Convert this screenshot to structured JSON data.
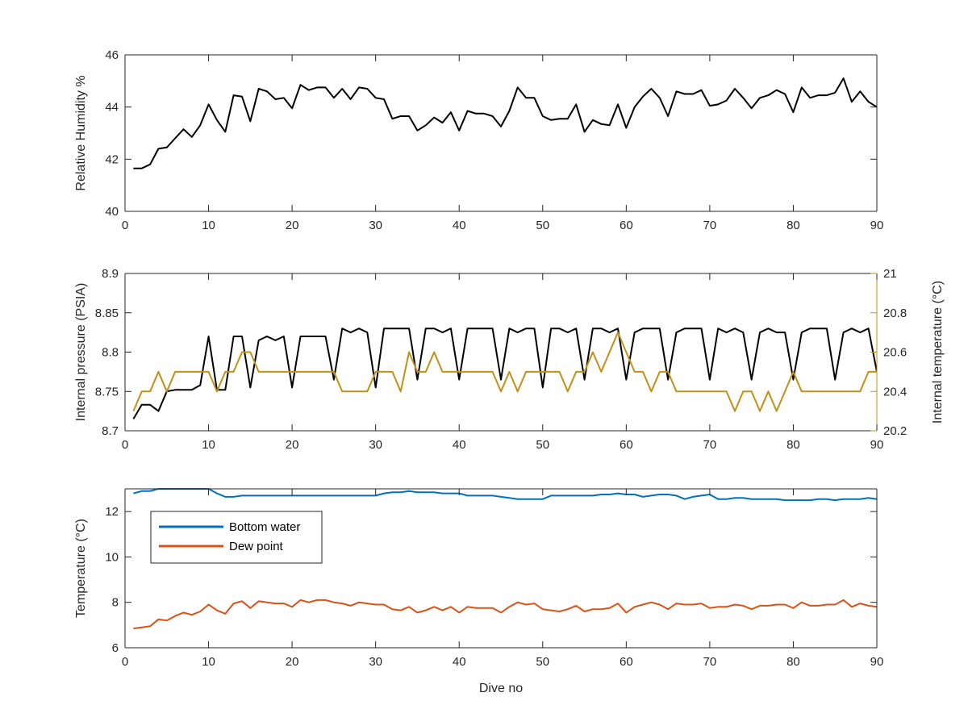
{
  "colors": {
    "rh": "#000000",
    "pressure": "#000000",
    "internal_temp": "#C09018",
    "bottom_water": "#0072BD",
    "dew_point": "#D95319",
    "axis": "#262626"
  },
  "chart_data": [
    {
      "id": "rh",
      "type": "line",
      "xlabel": "",
      "ylabel": "Relative Humidity %",
      "xlim": [
        0,
        90
      ],
      "ylim": [
        40,
        46
      ],
      "xticks": [
        0,
        10,
        20,
        30,
        40,
        50,
        60,
        70,
        80,
        90
      ],
      "yticks": [
        40,
        42,
        44,
        46
      ],
      "series": [
        {
          "color": "#000000",
          "x": [
            1,
            2,
            3,
            4,
            5,
            6,
            7,
            8,
            9,
            10,
            11,
            12,
            13,
            14,
            15,
            16,
            17,
            18,
            19,
            20,
            21,
            22,
            23,
            24,
            25,
            26,
            27,
            28,
            29,
            30,
            31,
            32,
            33,
            34,
            35,
            36,
            37,
            38,
            39,
            40,
            41,
            42,
            43,
            44,
            45,
            46,
            47,
            48,
            49,
            50,
            51,
            52,
            53,
            54,
            55,
            56,
            57,
            58,
            59,
            60,
            61,
            62,
            63,
            64,
            65,
            66,
            67,
            68,
            69,
            70,
            71,
            72,
            73,
            74,
            75,
            76,
            77,
            78,
            79,
            80,
            81,
            82,
            83,
            84,
            85,
            86,
            87,
            88,
            89,
            90
          ],
          "y": [
            41.65,
            41.65,
            41.8,
            42.4,
            42.45,
            42.8,
            43.15,
            42.85,
            43.3,
            44.1,
            43.5,
            43.05,
            44.45,
            44.4,
            43.45,
            44.7,
            44.6,
            44.3,
            44.35,
            43.95,
            44.85,
            44.65,
            44.75,
            44.75,
            44.35,
            44.7,
            44.3,
            44.75,
            44.7,
            44.35,
            44.3,
            43.55,
            43.65,
            43.65,
            43.1,
            43.3,
            43.6,
            43.4,
            43.8,
            43.1,
            43.85,
            43.75,
            43.75,
            43.65,
            43.25,
            43.85,
            44.75,
            44.35,
            44.35,
            43.65,
            43.5,
            43.55,
            43.55,
            44.1,
            43.05,
            43.5,
            43.35,
            43.3,
            44.1,
            43.2,
            44.0,
            44.4,
            44.7,
            44.35,
            43.65,
            44.6,
            44.5,
            44.5,
            44.65,
            44.05,
            44.1,
            44.25,
            44.7,
            44.35,
            43.95,
            44.35,
            44.45,
            44.65,
            44.5,
            43.8,
            44.75,
            44.35,
            44.45,
            44.45,
            44.55,
            45.1,
            44.2,
            44.6,
            44.2,
            44.0
          ]
        }
      ]
    },
    {
      "id": "pressure",
      "type": "line",
      "xlabel": "",
      "ylabel": "Internal pressure (PSIA)",
      "y2label": "Internal temperature (°C)",
      "xlim": [
        0,
        90
      ],
      "ylim": [
        8.7,
        8.9
      ],
      "y2lim": [
        20.2,
        21
      ],
      "xticks": [
        0,
        10,
        20,
        30,
        40,
        50,
        60,
        70,
        80,
        90
      ],
      "yticks": [
        8.7,
        8.75,
        8.8,
        8.85,
        8.9
      ],
      "y2ticks": [
        20.2,
        20.4,
        20.6,
        20.8,
        21
      ],
      "series": [
        {
          "axis": "left",
          "color": "#000000",
          "x": [
            1,
            2,
            3,
            4,
            5,
            6,
            7,
            8,
            9,
            10,
            11,
            12,
            13,
            14,
            15,
            16,
            17,
            18,
            19,
            20,
            21,
            22,
            23,
            24,
            25,
            26,
            27,
            28,
            29,
            30,
            31,
            32,
            33,
            34,
            35,
            36,
            37,
            38,
            39,
            40,
            41,
            42,
            43,
            44,
            45,
            46,
            47,
            48,
            49,
            50,
            51,
            52,
            53,
            54,
            55,
            56,
            57,
            58,
            59,
            60,
            61,
            62,
            63,
            64,
            65,
            66,
            67,
            68,
            69,
            70,
            71,
            72,
            73,
            74,
            75,
            76,
            77,
            78,
            79,
            80,
            81,
            82,
            83,
            84,
            85,
            86,
            87,
            88,
            89,
            90
          ],
          "y": [
            8.715,
            8.733,
            8.733,
            8.725,
            8.75,
            8.752,
            8.752,
            8.752,
            8.758,
            8.82,
            8.752,
            8.752,
            8.82,
            8.82,
            8.755,
            8.815,
            8.82,
            8.815,
            8.82,
            8.755,
            8.82,
            8.82,
            8.82,
            8.82,
            8.765,
            8.83,
            8.825,
            8.83,
            8.825,
            8.755,
            8.83,
            8.83,
            8.83,
            8.83,
            8.765,
            8.83,
            8.83,
            8.825,
            8.83,
            8.765,
            8.83,
            8.83,
            8.83,
            8.83,
            8.765,
            8.83,
            8.825,
            8.83,
            8.83,
            8.755,
            8.83,
            8.83,
            8.825,
            8.83,
            8.765,
            8.83,
            8.83,
            8.825,
            8.83,
            8.765,
            8.825,
            8.83,
            8.83,
            8.83,
            8.765,
            8.825,
            8.83,
            8.83,
            8.83,
            8.765,
            8.83,
            8.825,
            8.83,
            8.825,
            8.765,
            8.825,
            8.83,
            8.825,
            8.825,
            8.765,
            8.825,
            8.83,
            8.83,
            8.83,
            8.765,
            8.825,
            8.83,
            8.825,
            8.83,
            8.775
          ]
        },
        {
          "axis": "right",
          "color": "#C09018",
          "x": [
            1,
            2,
            3,
            4,
            5,
            6,
            7,
            8,
            9,
            10,
            11,
            12,
            13,
            14,
            15,
            16,
            17,
            18,
            19,
            20,
            21,
            22,
            23,
            24,
            25,
            26,
            27,
            28,
            29,
            30,
            31,
            32,
            33,
            34,
            35,
            36,
            37,
            38,
            39,
            40,
            41,
            42,
            43,
            44,
            45,
            46,
            47,
            48,
            49,
            50,
            51,
            52,
            53,
            54,
            55,
            56,
            57,
            58,
            59,
            60,
            61,
            62,
            63,
            64,
            65,
            66,
            67,
            68,
            69,
            70,
            71,
            72,
            73,
            74,
            75,
            76,
            77,
            78,
            79,
            80,
            81,
            82,
            83,
            84,
            85,
            86,
            87,
            88,
            89,
            90
          ],
          "y": [
            20.3,
            20.4,
            20.4,
            20.5,
            20.4,
            20.5,
            20.5,
            20.5,
            20.5,
            20.5,
            20.4,
            20.5,
            20.5,
            20.6,
            20.6,
            20.5,
            20.5,
            20.5,
            20.5,
            20.5,
            20.5,
            20.5,
            20.5,
            20.5,
            20.5,
            20.4,
            20.4,
            20.4,
            20.4,
            20.5,
            20.5,
            20.5,
            20.4,
            20.6,
            20.5,
            20.5,
            20.6,
            20.5,
            20.5,
            20.5,
            20.5,
            20.5,
            20.5,
            20.5,
            20.4,
            20.5,
            20.4,
            20.5,
            20.5,
            20.5,
            20.5,
            20.5,
            20.4,
            20.5,
            20.5,
            20.6,
            20.5,
            20.6,
            20.7,
            20.6,
            20.5,
            20.5,
            20.4,
            20.5,
            20.5,
            20.4,
            20.4,
            20.4,
            20.4,
            20.4,
            20.4,
            20.4,
            20.3,
            20.4,
            20.4,
            20.3,
            20.4,
            20.3,
            20.4,
            20.5,
            20.4,
            20.4,
            20.4,
            20.4,
            20.4,
            20.4,
            20.4,
            20.4,
            20.5,
            20.5
          ]
        }
      ]
    },
    {
      "id": "temperature",
      "type": "line",
      "xlabel": "Dive no",
      "ylabel": "Temperature (°C)",
      "xlim": [
        0,
        90
      ],
      "ylim": [
        6,
        13
      ],
      "xticks": [
        0,
        10,
        20,
        30,
        40,
        50,
        60,
        70,
        80,
        90
      ],
      "yticks": [
        6,
        8,
        10,
        12
      ],
      "legend": "top-left",
      "series": [
        {
          "name": "Bottom water",
          "color": "#0072BD",
          "x": [
            1,
            2,
            3,
            4,
            5,
            6,
            7,
            8,
            9,
            10,
            11,
            12,
            13,
            14,
            15,
            16,
            17,
            18,
            19,
            20,
            21,
            22,
            23,
            24,
            25,
            26,
            27,
            28,
            29,
            30,
            31,
            32,
            33,
            34,
            35,
            36,
            37,
            38,
            39,
            40,
            41,
            42,
            43,
            44,
            45,
            46,
            47,
            48,
            49,
            50,
            51,
            52,
            53,
            54,
            55,
            56,
            57,
            58,
            59,
            60,
            61,
            62,
            63,
            64,
            65,
            66,
            67,
            68,
            69,
            70,
            71,
            72,
            73,
            74,
            75,
            76,
            77,
            78,
            79,
            80,
            81,
            82,
            83,
            84,
            85,
            86,
            87,
            88,
            89,
            90
          ],
          "y": [
            12.8,
            12.9,
            12.9,
            13.0,
            13.0,
            13.0,
            13.0,
            13.0,
            13.0,
            13.0,
            12.8,
            12.65,
            12.65,
            12.7,
            12.7,
            12.7,
            12.7,
            12.7,
            12.7,
            12.7,
            12.7,
            12.7,
            12.7,
            12.7,
            12.7,
            12.7,
            12.7,
            12.7,
            12.7,
            12.7,
            12.8,
            12.85,
            12.85,
            12.9,
            12.85,
            12.85,
            12.85,
            12.8,
            12.8,
            12.8,
            12.7,
            12.7,
            12.7,
            12.7,
            12.65,
            12.6,
            12.55,
            12.55,
            12.55,
            12.55,
            12.7,
            12.7,
            12.7,
            12.7,
            12.7,
            12.7,
            12.75,
            12.75,
            12.8,
            12.75,
            12.75,
            12.65,
            12.7,
            12.75,
            12.75,
            12.7,
            12.55,
            12.65,
            12.7,
            12.75,
            12.55,
            12.55,
            12.6,
            12.6,
            12.55,
            12.55,
            12.55,
            12.55,
            12.5,
            12.5,
            12.5,
            12.5,
            12.55,
            12.55,
            12.5,
            12.55,
            12.55,
            12.55,
            12.6,
            12.55
          ]
        },
        {
          "name": "Dew point",
          "color": "#D95319",
          "x": [
            1,
            2,
            3,
            4,
            5,
            6,
            7,
            8,
            9,
            10,
            11,
            12,
            13,
            14,
            15,
            16,
            17,
            18,
            19,
            20,
            21,
            22,
            23,
            24,
            25,
            26,
            27,
            28,
            29,
            30,
            31,
            32,
            33,
            34,
            35,
            36,
            37,
            38,
            39,
            40,
            41,
            42,
            43,
            44,
            45,
            46,
            47,
            48,
            49,
            50,
            51,
            52,
            53,
            54,
            55,
            56,
            57,
            58,
            59,
            60,
            61,
            62,
            63,
            64,
            65,
            66,
            67,
            68,
            69,
            70,
            71,
            72,
            73,
            74,
            75,
            76,
            77,
            78,
            79,
            80,
            81,
            82,
            83,
            84,
            85,
            86,
            87,
            88,
            89,
            90
          ],
          "y": [
            6.85,
            6.9,
            6.95,
            7.25,
            7.2,
            7.4,
            7.55,
            7.45,
            7.6,
            7.9,
            7.65,
            7.5,
            7.95,
            8.05,
            7.75,
            8.05,
            8.0,
            7.95,
            7.95,
            7.8,
            8.1,
            8.0,
            8.1,
            8.1,
            8.0,
            7.95,
            7.85,
            8.0,
            7.95,
            7.9,
            7.9,
            7.7,
            7.65,
            7.8,
            7.55,
            7.65,
            7.8,
            7.65,
            7.8,
            7.55,
            7.8,
            7.75,
            7.75,
            7.75,
            7.55,
            7.8,
            8.0,
            7.9,
            7.95,
            7.7,
            7.65,
            7.6,
            7.7,
            7.85,
            7.6,
            7.7,
            7.7,
            7.75,
            7.95,
            7.55,
            7.8,
            7.9,
            8.0,
            7.9,
            7.7,
            7.95,
            7.9,
            7.9,
            7.95,
            7.75,
            7.8,
            7.8,
            7.9,
            7.85,
            7.7,
            7.85,
            7.85,
            7.9,
            7.9,
            7.75,
            8.0,
            7.85,
            7.85,
            7.9,
            7.9,
            8.1,
            7.8,
            7.95,
            7.85,
            7.8
          ]
        }
      ]
    }
  ]
}
